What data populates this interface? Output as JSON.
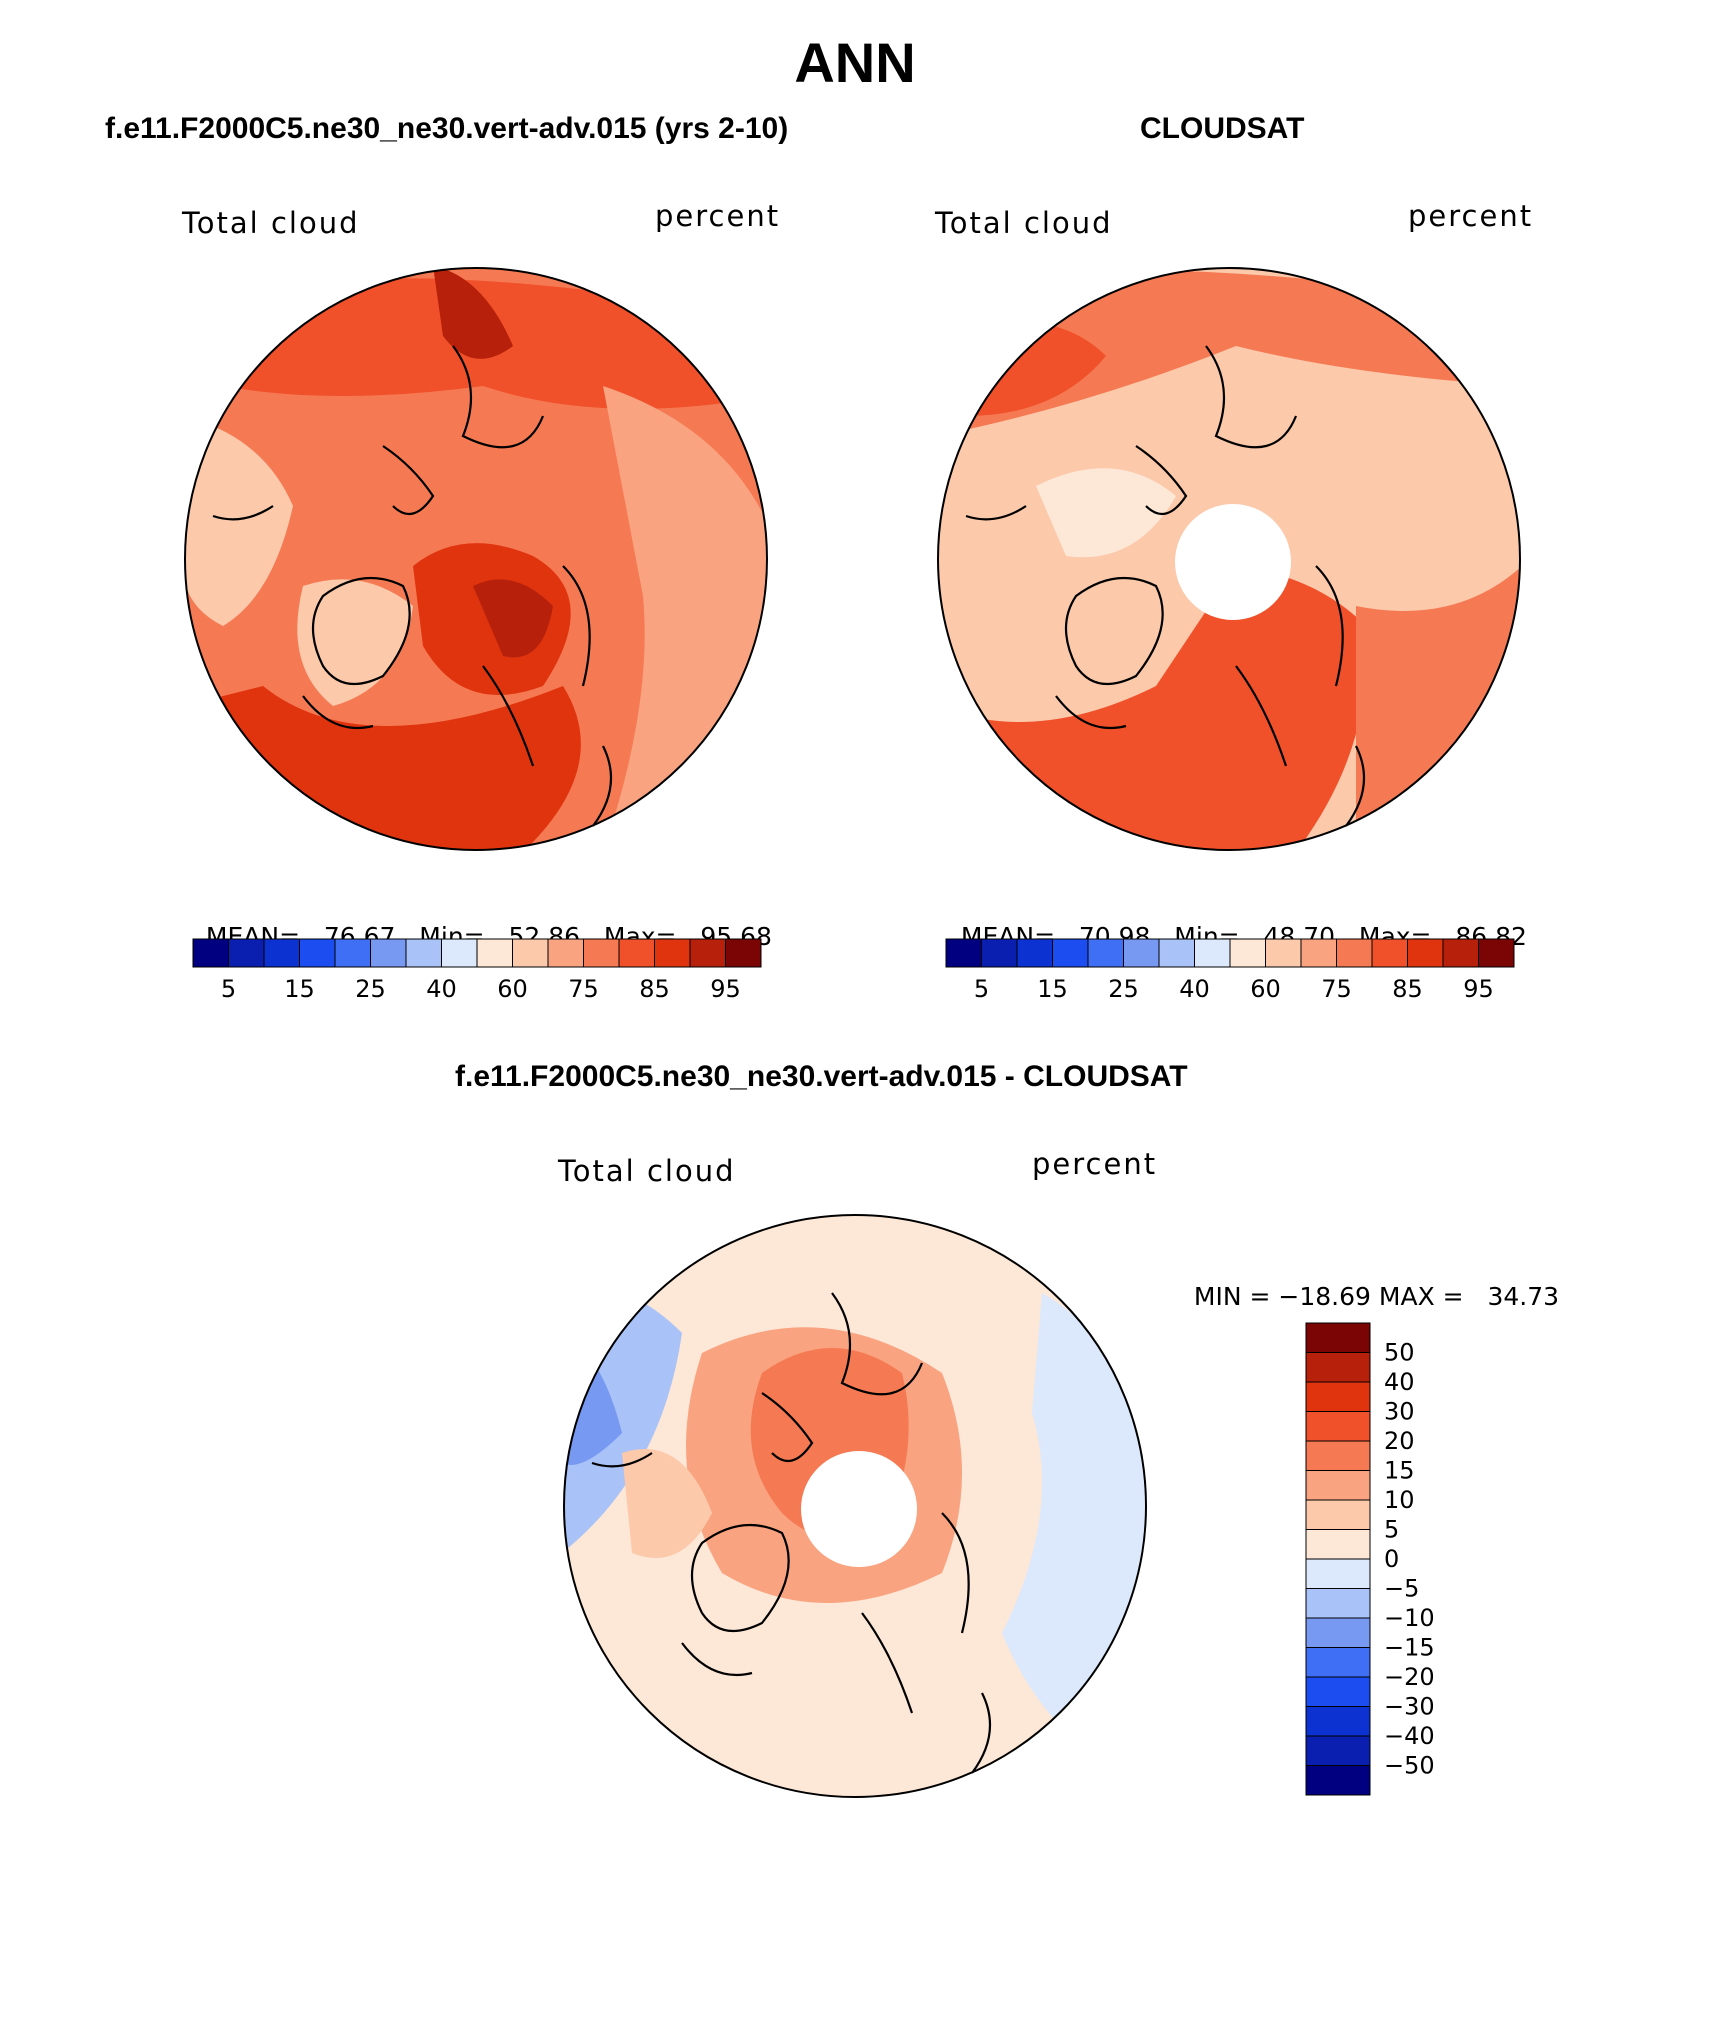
{
  "main_title": "ANN",
  "panels": [
    {
      "title": "f.e11.F2000C5.ne30_ne30.vert-adv.015 (yrs 2-10)",
      "left_label": "Total cloud",
      "right_label": "percent",
      "stats": {
        "mean_label": "MEAN=",
        "mean": "76.67",
        "min_label": "Min=",
        "min": "52.86",
        "max_label": "Max=",
        "max": "95.68"
      }
    },
    {
      "title": "CLOUDSAT",
      "left_label": "Total cloud",
      "right_label": "percent",
      "stats": {
        "mean_label": "MEAN=",
        "mean": "70.98",
        "min_label": "Min=",
        "min": "48.70",
        "max_label": "Max=",
        "max": "86.82"
      }
    },
    {
      "title": "f.e11.F2000C5.ne30_ne30.vert-adv.015 - CLOUDSAT",
      "left_label": "Total cloud",
      "right_label": "percent",
      "stats": {
        "min_label": "MIN =",
        "min": "−18.69",
        "max_label": "MAX =",
        "max": "34.73"
      }
    }
  ],
  "colorbar_horizontal": {
    "colors": [
      "#000080",
      "#0a1fb0",
      "#0d32d2",
      "#1b4df0",
      "#3f6ff5",
      "#7799f2",
      "#a9c2f8",
      "#dce8fb",
      "#fde7d7",
      "#fcc9ab",
      "#f9a380",
      "#f57a53",
      "#f0512a",
      "#e0340f",
      "#b7200a",
      "#7b0505"
    ],
    "labels": [
      "5",
      "15",
      "25",
      "40",
      "60",
      "75",
      "85",
      "95"
    ]
  },
  "colorbar_vertical": {
    "colors": [
      "#7b0505",
      "#b7200a",
      "#e0340f",
      "#f0512a",
      "#f57a53",
      "#f9a380",
      "#fcc9ab",
      "#fde7d7",
      "#dce8fb",
      "#a9c2f8",
      "#7799f2",
      "#3f6ff5",
      "#1b4df0",
      "#0d32d2",
      "#0a1fb0",
      "#000080"
    ],
    "labels": [
      "50",
      "40",
      "30",
      "20",
      "15",
      "10",
      "5",
      "0",
      "−5",
      "−10",
      "−15",
      "−20",
      "−30",
      "−40",
      "−50"
    ]
  },
  "map_fields": {
    "panel1_base": "#f57a53",
    "panel2_base": "#fcc9ab",
    "panel3_base": "#fde7d7"
  }
}
